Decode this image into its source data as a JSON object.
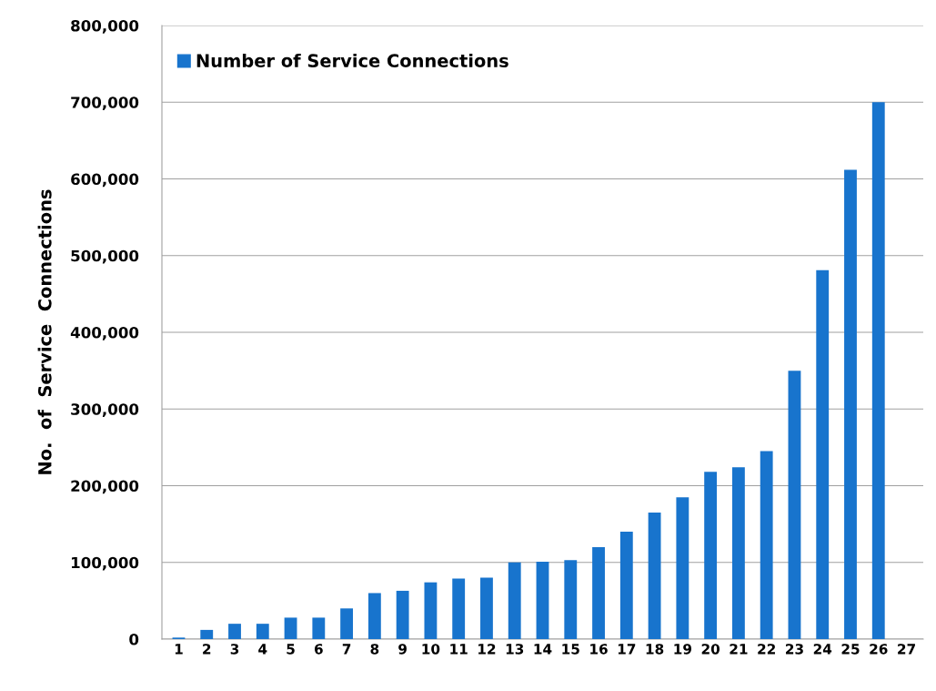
{
  "chart_data": {
    "type": "bar",
    "categories": [
      "1",
      "2",
      "3",
      "4",
      "5",
      "6",
      "7",
      "8",
      "9",
      "10",
      "11",
      "12",
      "13",
      "14",
      "15",
      "16",
      "17",
      "18",
      "19",
      "20",
      "21",
      "22",
      "23",
      "24",
      "25",
      "26",
      "27"
    ],
    "series": [
      {
        "name": "Number of Service Connections",
        "color": "#1874cd",
        "values": [
          2000,
          12000,
          20000,
          20000,
          28000,
          28000,
          40000,
          60000,
          63000,
          74000,
          79000,
          80000,
          100000,
          101000,
          103000,
          120000,
          140000,
          165000,
          185000,
          218000,
          224000,
          245000,
          350000,
          481000,
          612000,
          700000,
          null
        ]
      }
    ],
    "ylabel": "No.  of  Service  Connections",
    "ylim": [
      0,
      800000
    ],
    "yticks": [
      {
        "value": 0,
        "label": "0"
      },
      {
        "value": 100000,
        "label": "100,000"
      },
      {
        "value": 200000,
        "label": "200,000"
      },
      {
        "value": 300000,
        "label": "300,000"
      },
      {
        "value": 400000,
        "label": "400,000"
      },
      {
        "value": 500000,
        "label": "500,000"
      },
      {
        "value": 600000,
        "label": "600,000"
      },
      {
        "value": 700000,
        "label": "700,000"
      },
      {
        "value": 800000,
        "label": "800,000"
      }
    ],
    "grid": "y",
    "legend": "top left"
  }
}
